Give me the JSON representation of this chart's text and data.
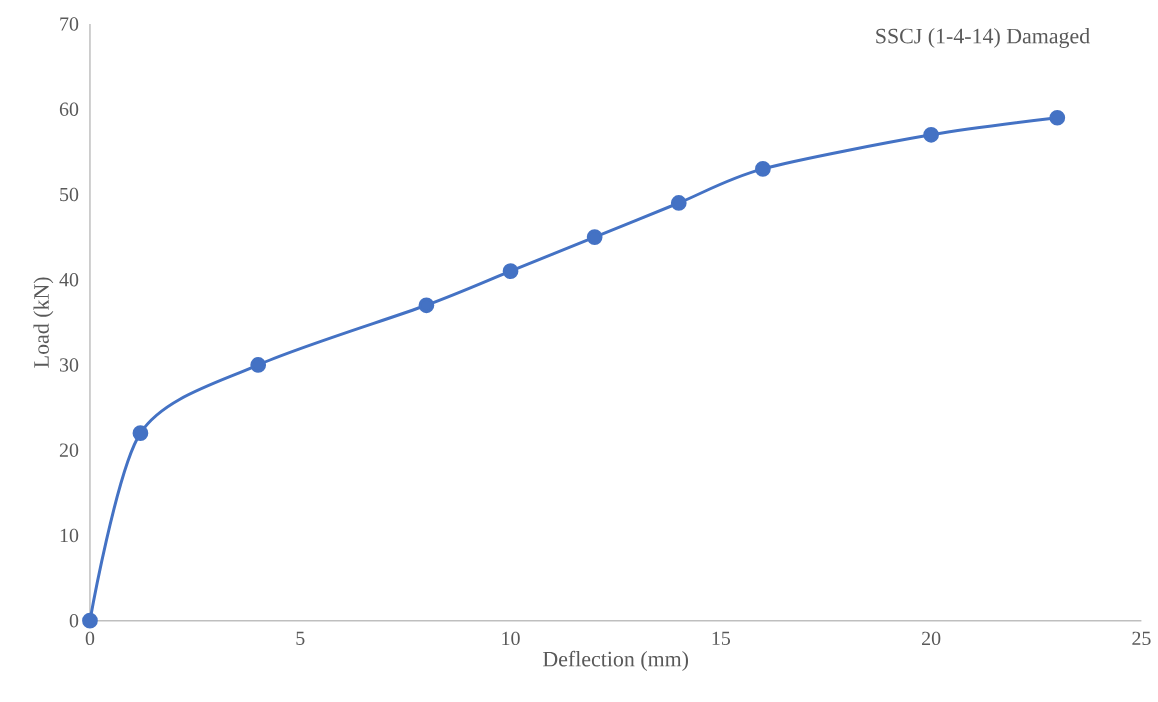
{
  "chart_data": {
    "type": "line",
    "title": "SSCJ (1-4-14) Damaged",
    "xlabel": "Deflection (mm)",
    "ylabel": "Load (kN)",
    "x": [
      0,
      1.2,
      4,
      8,
      10,
      12,
      14,
      16,
      20,
      23
    ],
    "values": [
      0,
      22,
      30,
      37,
      41,
      45,
      49,
      53,
      57,
      59
    ],
    "color": "#4472c4",
    "marker": "circle",
    "xlim": [
      0,
      25
    ],
    "ylim": [
      0,
      70
    ],
    "xticks": [
      0,
      5,
      10,
      15,
      20,
      25
    ],
    "yticks": [
      0,
      10,
      20,
      30,
      40,
      50,
      60,
      70
    ]
  }
}
